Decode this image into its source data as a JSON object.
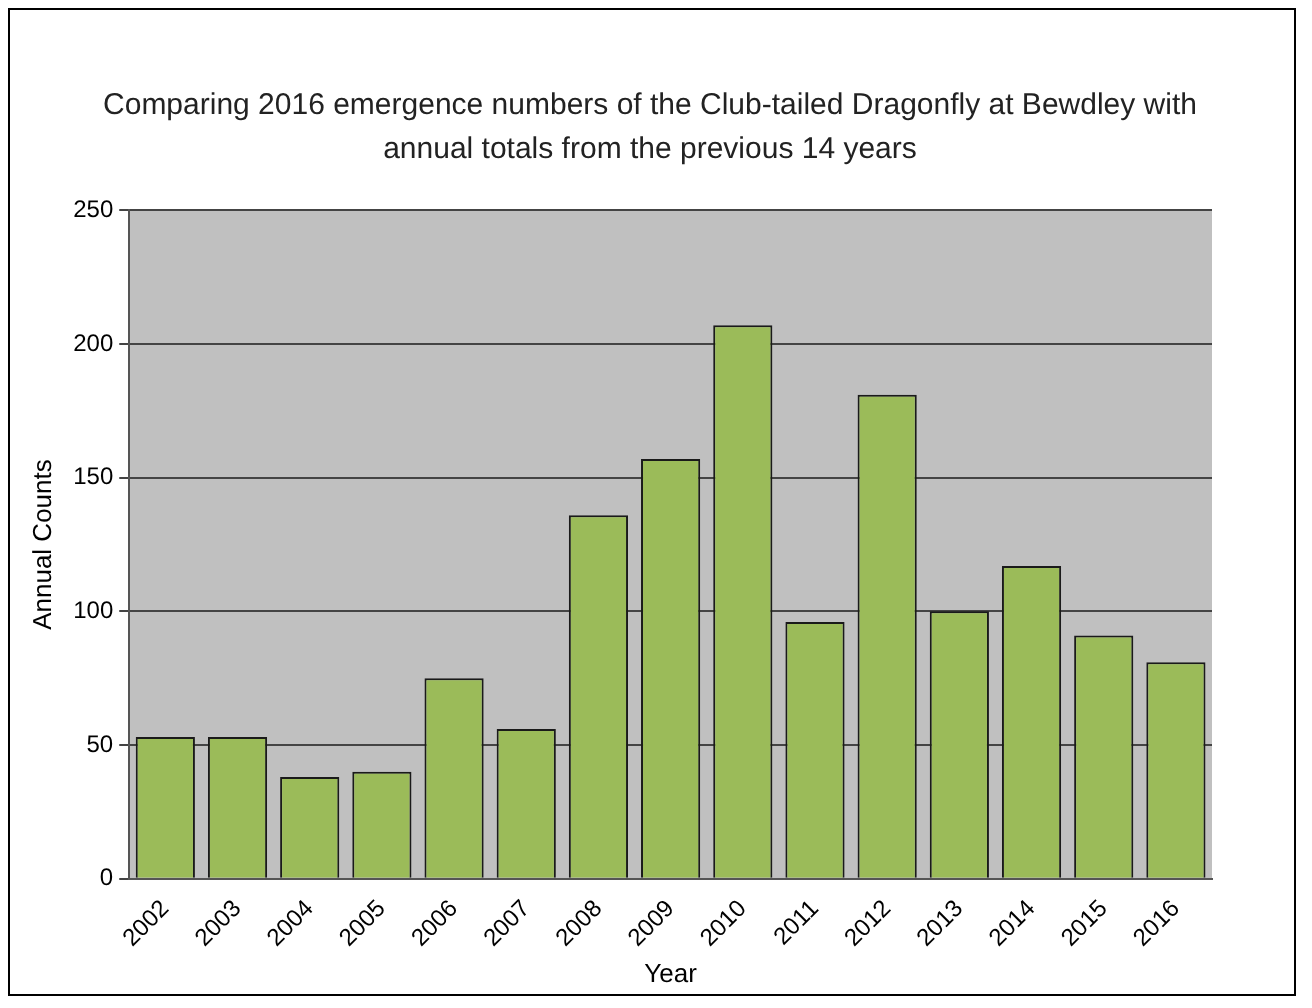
{
  "chart_data": {
    "type": "bar",
    "title": "Comparing 2016 emergence numbers of the Club-tailed Dragonfly at Bewdley with annual totals from the previous 14 years",
    "categories": [
      "2002",
      "2003",
      "2004",
      "2005",
      "2006",
      "2007",
      "2008",
      "2009",
      "2010",
      "2011",
      "2012",
      "2013",
      "2014",
      "2015",
      "2016"
    ],
    "values": [
      53,
      53,
      38,
      40,
      75,
      56,
      136,
      157,
      207,
      96,
      181,
      100,
      117,
      91,
      81
    ],
    "color": "#9bbb59",
    "xlabel": "Year",
    "ylabel": "Annual Counts",
    "ylim": [
      0,
      250
    ],
    "yticks": [
      0,
      50,
      100,
      150,
      200,
      250
    ],
    "grid": "y",
    "legend": false
  }
}
